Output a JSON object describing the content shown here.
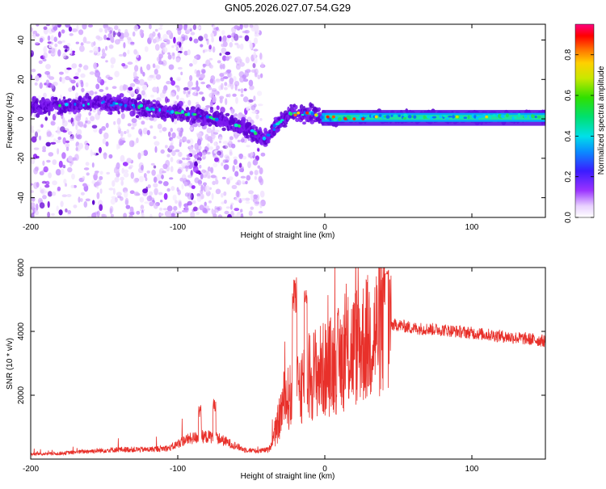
{
  "title": "GN05.2026.027.07.54.G29",
  "chart_data": [
    {
      "type": "heatmap",
      "xlabel": "Height of straight line (km)",
      "ylabel": "Frequency (Hz)",
      "xlim": [
        -200,
        150
      ],
      "ylim": [
        -50,
        48
      ],
      "xticks": [
        -200,
        -100,
        0,
        100
      ],
      "xtick_labels": [
        "-200",
        "-100",
        "0",
        "100"
      ],
      "yticks": [
        -40,
        -20,
        0,
        20,
        40
      ],
      "ytick_labels": [
        "-40",
        "-20",
        "0",
        "20",
        "40"
      ],
      "ridge": {
        "x": [
          -200,
          -175,
          -150,
          -125,
          -100,
          -80,
          -60,
          -50,
          -45,
          -40,
          -35,
          -30,
          -25,
          -20,
          -15,
          -10,
          -5,
          0,
          10,
          20,
          40,
          60,
          80,
          100,
          120,
          150
        ],
        "y": [
          6,
          7,
          8,
          6,
          3,
          1,
          -3,
          -6,
          -8,
          -10,
          -5,
          -1,
          2,
          3,
          2,
          3,
          2,
          0,
          0,
          1,
          1,
          1,
          1,
          1,
          1,
          1
        ]
      },
      "colorbar": {
        "label": "Normalized spectral amplitude",
        "range": [
          0,
          0.95
        ],
        "ticks": [
          0.0,
          0.2,
          0.4,
          0.6,
          0.8
        ],
        "tick_labels": [
          "0.0",
          "0.2",
          "0.4",
          "0.6",
          "0.8"
        ]
      }
    },
    {
      "type": "line",
      "xlabel": "Height of straight line (km)",
      "ylabel": "SNR (10 * v/v)",
      "xlim": [
        -200,
        150
      ],
      "ylim": [
        0,
        6000
      ],
      "xticks": [
        -200,
        -100,
        0,
        100
      ],
      "xtick_labels": [
        "-200",
        "-100",
        "0",
        "100"
      ],
      "yticks": [
        2000,
        4000,
        6000
      ],
      "ytick_labels": [
        "2000",
        "4000",
        "6000"
      ],
      "color": "#e8302a",
      "envelope": {
        "x": [
          -200,
          -180,
          -160,
          -140,
          -120,
          -105,
          -95,
          -85,
          -75,
          -65,
          -55,
          -45,
          -38,
          -33,
          -28,
          -22,
          -15,
          -8,
          0,
          10,
          20,
          30,
          40,
          50,
          60,
          80,
          100,
          120,
          150
        ],
        "y": [
          150,
          180,
          250,
          300,
          300,
          350,
          600,
          700,
          700,
          500,
          300,
          250,
          300,
          900,
          1800,
          2000,
          2400,
          2700,
          2800,
          3100,
          3500,
          3800,
          4200,
          4200,
          4100,
          4050,
          3950,
          3850,
          3700
        ]
      }
    }
  ]
}
